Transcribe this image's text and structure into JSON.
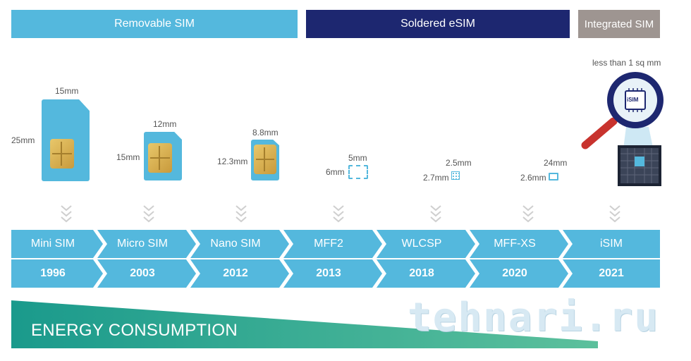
{
  "bands": {
    "removable": "Removable SIM",
    "soldered": "Soldered eSIM",
    "integrated": "Integrated SIM"
  },
  "sizes": {
    "mini_w": "15mm",
    "mini_h": "25mm",
    "micro_w": "12mm",
    "micro_h": "15mm",
    "nano_w": "8.8mm",
    "nano_h": "12.3mm",
    "mff2_w": "5mm",
    "mff2_h": "6mm",
    "wlcsp_w": "2.5mm",
    "wlcsp_h": "2.7mm",
    "mffxs_w": "24mm",
    "mffxs_h": "2.6mm",
    "isim_note": "less than 1 sq mm",
    "isim_chip_label": "iSIM"
  },
  "timeline": [
    {
      "name": "Mini SIM",
      "year": "1996"
    },
    {
      "name": "Micro SIM",
      "year": "2003"
    },
    {
      "name": "Nano SIM",
      "year": "2012"
    },
    {
      "name": "MFF2",
      "year": "2013"
    },
    {
      "name": "WLCSP",
      "year": "2018"
    },
    {
      "name": "MFF-XS",
      "year": "2020"
    },
    {
      "name": "iSIM",
      "year": "2021"
    }
  ],
  "energy": {
    "label": "ENERGY CONSUMPTION",
    "color_start": "#1a9a8c",
    "color_end": "#5cc09c"
  },
  "colors": {
    "removable": "#54b8dd",
    "soldered": "#1d2770",
    "integrated": "#9e9591"
  },
  "watermark": "tehnari.ru"
}
